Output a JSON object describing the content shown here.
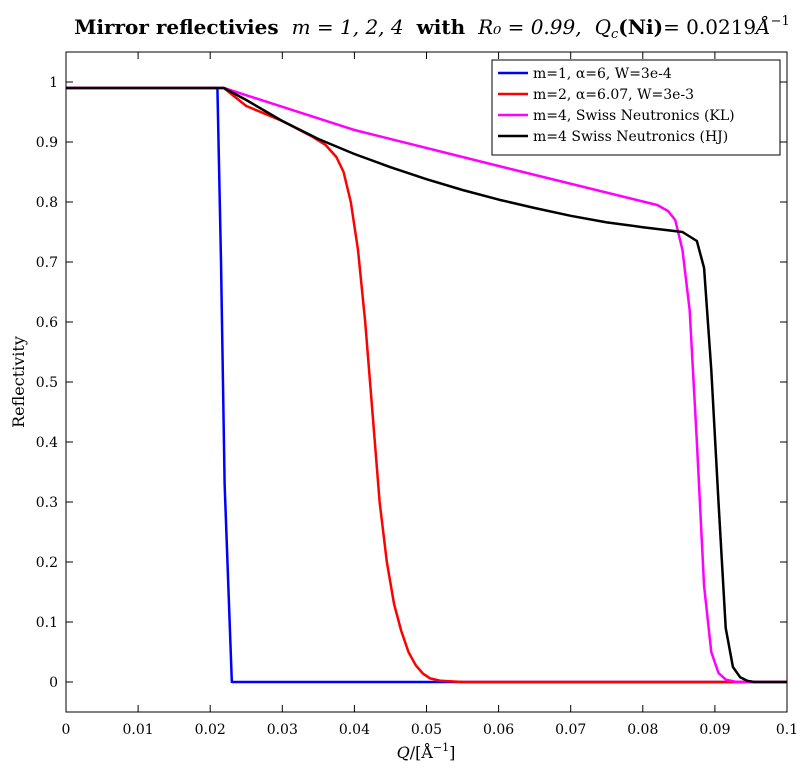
{
  "chart_data": {
    "type": "line",
    "title": "Mirror reflectivies m = 1, 2, 4 with R₀ = 0.99, Q_c(Ni)= 0.0219Å⁻¹",
    "title_parts": {
      "lead": "Mirror reflectivies",
      "m_label": "m = 1, 2, 4",
      "with_label": "with",
      "r0_label": "R₀ = 0.99,",
      "qc_label": "Q",
      "qc_sub": "c",
      "ni_label": "(Ni)",
      "qc_value": "= 0.0219",
      "unit": "Å",
      "unit_exp": "−1"
    },
    "xlabel": "Q/[Å⁻¹]",
    "xlabel_parts": {
      "q": "Q",
      "unit": "/[Å",
      "exp": "−1",
      "close": "]"
    },
    "ylabel": "Reflectivity",
    "xlim": [
      0,
      0.1
    ],
    "ylim": [
      -0.05,
      1.05
    ],
    "x_ticks": [
      0,
      0.01,
      0.02,
      0.03,
      0.04,
      0.05,
      0.06,
      0.07,
      0.08,
      0.09,
      0.1
    ],
    "x_tick_labels": [
      "0",
      "0.01",
      "0.02",
      "0.03",
      "0.04",
      "0.05",
      "0.06",
      "0.07",
      "0.08",
      "0.09",
      "0.1"
    ],
    "y_ticks": [
      0,
      0.1,
      0.2,
      0.3,
      0.4,
      0.5,
      0.6,
      0.7,
      0.8,
      0.9,
      1
    ],
    "y_tick_labels": [
      "0",
      "0.1",
      "0.2",
      "0.3",
      "0.4",
      "0.5",
      "0.6",
      "0.7",
      "0.8",
      "0.9",
      "1"
    ],
    "grid": false,
    "legend_position": "top-right",
    "series": [
      {
        "name": "m=1, α=6, W=3e-4",
        "color": "#0000ff",
        "x": [
          0,
          0.021,
          0.0215,
          0.022,
          0.023,
          0.1
        ],
        "y": [
          0.99,
          0.99,
          0.7,
          0.33,
          0.0,
          0.0
        ]
      },
      {
        "name": "m=2, α=6.07, W=3e-3",
        "color": "#ff0000",
        "x": [
          0,
          0.0219,
          0.025,
          0.03,
          0.034,
          0.036,
          0.0375,
          0.0385,
          0.0395,
          0.0405,
          0.0415,
          0.0425,
          0.0435,
          0.0445,
          0.0455,
          0.0465,
          0.0475,
          0.0485,
          0.0495,
          0.0505,
          0.052,
          0.055,
          0.06,
          0.1
        ],
        "y": [
          0.99,
          0.99,
          0.96,
          0.935,
          0.91,
          0.895,
          0.875,
          0.85,
          0.8,
          0.72,
          0.6,
          0.45,
          0.3,
          0.2,
          0.13,
          0.085,
          0.05,
          0.028,
          0.014,
          0.006,
          0.002,
          0.0,
          0.0,
          0.0
        ]
      },
      {
        "name": "m=4, Swiss Neutronics (KL)",
        "color": "#ff00ff",
        "x": [
          0,
          0.0219,
          0.04,
          0.06,
          0.082,
          0.0835,
          0.0845,
          0.0855,
          0.0865,
          0.0875,
          0.0885,
          0.0895,
          0.0905,
          0.0915,
          0.093,
          0.1
        ],
        "y": [
          0.99,
          0.99,
          0.92,
          0.86,
          0.795,
          0.785,
          0.77,
          0.72,
          0.62,
          0.4,
          0.16,
          0.05,
          0.015,
          0.004,
          0.0,
          0.0
        ]
      },
      {
        "name": "m=4 Swiss Neutronics (HJ)",
        "color": "#000000",
        "x": [
          0,
          0.0219,
          0.025,
          0.03,
          0.035,
          0.04,
          0.045,
          0.05,
          0.055,
          0.06,
          0.065,
          0.07,
          0.075,
          0.08,
          0.0855,
          0.0875,
          0.0885,
          0.0895,
          0.0905,
          0.0915,
          0.0925,
          0.0935,
          0.0945,
          0.0955,
          0.097,
          0.1
        ],
        "y": [
          0.99,
          0.99,
          0.97,
          0.935,
          0.905,
          0.88,
          0.858,
          0.838,
          0.82,
          0.804,
          0.79,
          0.777,
          0.766,
          0.758,
          0.75,
          0.735,
          0.69,
          0.52,
          0.3,
          0.09,
          0.025,
          0.008,
          0.002,
          0.0,
          0.0,
          0.0
        ]
      }
    ]
  }
}
